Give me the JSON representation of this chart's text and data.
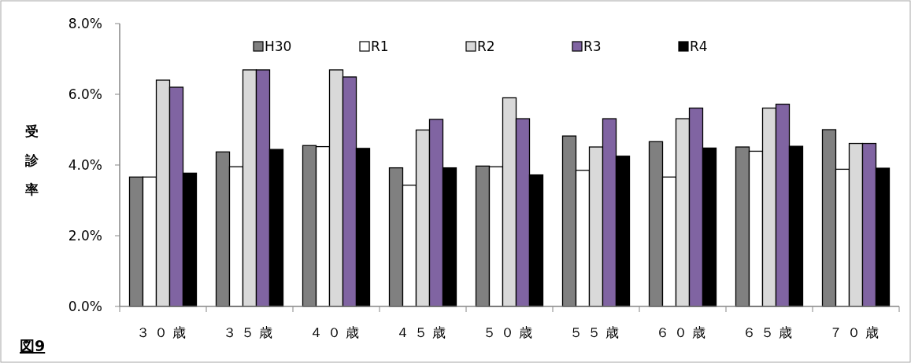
{
  "chart_data": {
    "type": "bar",
    "ylabel": "受診率",
    "annotations": [
      "図9"
    ],
    "categories": [
      "３０歳",
      "３５歳",
      "４０歳",
      "４５歳",
      "５０歳",
      "５５歳",
      "６０歳",
      "６５歳",
      "７０歳"
    ],
    "series": [
      {
        "name": "H30",
        "color": "#808080",
        "values": [
          3.66,
          4.37,
          4.55,
          3.92,
          3.97,
          4.82,
          4.66,
          4.51,
          5.0
        ]
      },
      {
        "name": "R1",
        "color": "#ffffff",
        "values": [
          3.66,
          3.95,
          4.52,
          3.43,
          3.95,
          3.85,
          3.66,
          4.39,
          3.88
        ]
      },
      {
        "name": "R2",
        "color": "#d9d9d9",
        "values": [
          6.4,
          6.69,
          6.69,
          4.99,
          5.9,
          4.51,
          5.31,
          5.61,
          4.61
        ]
      },
      {
        "name": "R3",
        "color": "#8064a2",
        "values": [
          6.2,
          6.69,
          6.49,
          5.29,
          5.31,
          5.31,
          5.61,
          5.72,
          4.61
        ]
      },
      {
        "name": "R4",
        "color": "#000000",
        "values": [
          3.77,
          4.44,
          4.47,
          3.92,
          3.72,
          4.25,
          4.48,
          4.53,
          3.91
        ]
      }
    ],
    "ylim": [
      0,
      8
    ],
    "yticks": [
      {
        "value": 0,
        "label": "0.0%"
      },
      {
        "value": 2,
        "label": "2.0%"
      },
      {
        "value": 4,
        "label": "4.0%"
      },
      {
        "value": 6,
        "label": "6.0%"
      },
      {
        "value": 8,
        "label": "8.0%"
      }
    ],
    "legend": "top"
  }
}
